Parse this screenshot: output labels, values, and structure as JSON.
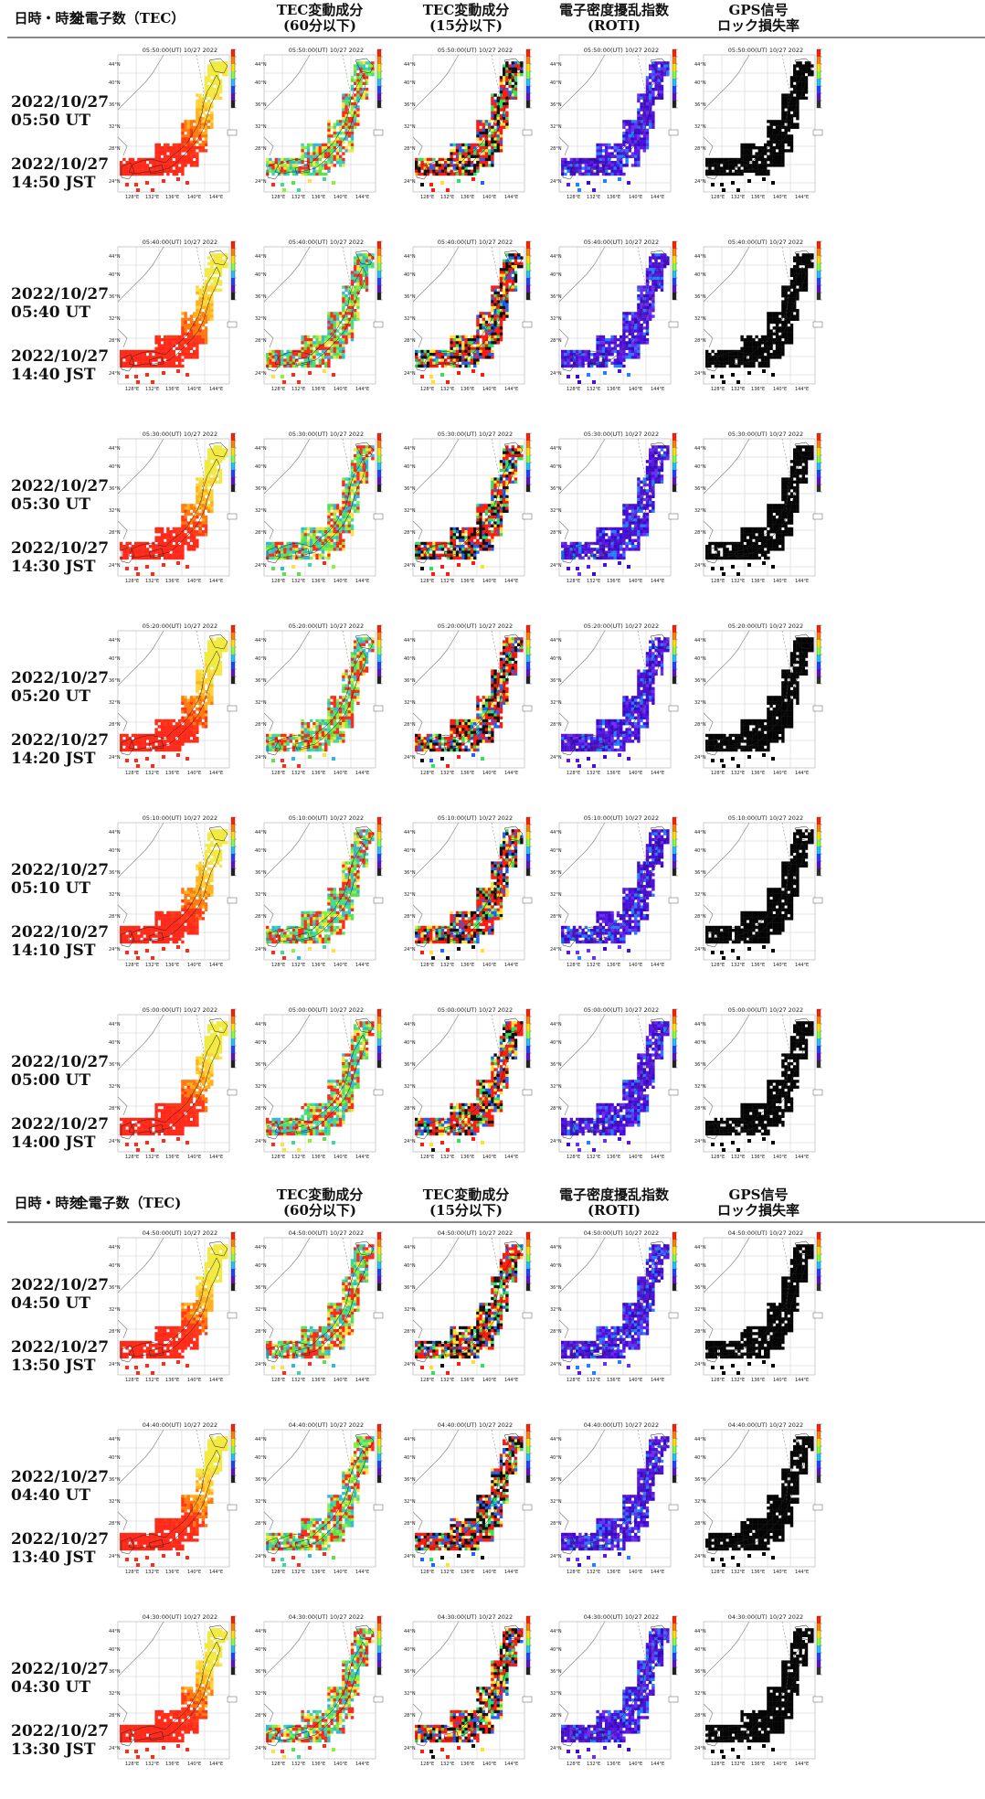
{
  "header": {
    "col_time": "日時・時刻",
    "columns": [
      {
        "label1": "全電子数（TEC）",
        "label2": ""
      },
      {
        "label1": "TEC変動成分",
        "label2": "(60分以下)"
      },
      {
        "label1": "TEC変動成分",
        "label2": "(15分以下)"
      },
      {
        "label1": "電子密度擾乱指数",
        "label2": "(ROTI)"
      },
      {
        "label1": "GPS信号",
        "label2": "ロック損失率"
      }
    ]
  },
  "header_repeat": {
    "col_time": "日時・時刻",
    "columns": [
      {
        "label1": "全電子数（TEC)",
        "label2": ""
      },
      {
        "label1": "TEC変動成分",
        "label2": "(60分以下)"
      },
      {
        "label1": "TEC変動成分",
        "label2": "(15分以下)"
      },
      {
        "label1": "電子密度擾乱指数",
        "label2": "(ROTI)"
      },
      {
        "label1": "GPS信号",
        "label2": "ロック損失率"
      }
    ]
  },
  "map_axes": {
    "lat_ticks": [
      "44°N",
      "40°N",
      "36°N",
      "32°N",
      "28°N",
      "24°N"
    ],
    "lon_ticks": [
      "128°E",
      "132°E",
      "136°E",
      "140°E",
      "144°E"
    ]
  },
  "rows": [
    {
      "utc": "2022/10/27",
      "utc_time": "05:50 UT",
      "jst": "2022/10/27",
      "jst_time": "14:50 JST",
      "map_title": "05:50:00(UT) 10/27 2022"
    },
    {
      "utc": "2022/10/27",
      "utc_time": "05:40 UT",
      "jst": "2022/10/27",
      "jst_time": "14:40 JST",
      "map_title": "05:40:00(UT) 10/27 2022"
    },
    {
      "utc": "2022/10/27",
      "utc_time": "05:30 UT",
      "jst": "2022/10/27",
      "jst_time": "14:30 JST",
      "map_title": "05:30:00(UT) 10/27 2022"
    },
    {
      "utc": "2022/10/27",
      "utc_time": "05:20 UT",
      "jst": "2022/10/27",
      "jst_time": "14:20 JST",
      "map_title": "05:20:00(UT) 10/27 2022"
    },
    {
      "utc": "2022/10/27",
      "utc_time": "05:10 UT",
      "jst": "2022/10/27",
      "jst_time": "14:10 JST",
      "map_title": "05:10:00(UT) 10/27 2022"
    },
    {
      "utc": "2022/10/27",
      "utc_time": "05:00 UT",
      "jst": "2022/10/27",
      "jst_time": "14:00 JST",
      "map_title": "05:00:00(UT) 10/27 2022"
    },
    {
      "utc": "2022/10/27",
      "utc_time": "04:50 UT",
      "jst": "2022/10/27",
      "jst_time": "13:50 JST",
      "map_title": "04:50:00(UT) 10/27 2022"
    },
    {
      "utc": "2022/10/27",
      "utc_time": "04:40 UT",
      "jst": "2022/10/27",
      "jst_time": "13:40 JST",
      "map_title": "04:40:00(UT) 10/27 2022"
    },
    {
      "utc": "2022/10/27",
      "utc_time": "04:30 UT",
      "jst": "2022/10/27",
      "jst_time": "13:30 JST",
      "map_title": "04:30:00(UT) 10/27 2022"
    }
  ],
  "palettes": {
    "tec": [
      "#ff2a1a",
      "#ff2a1a",
      "#ff3a18",
      "#ff7a10",
      "#ffb020",
      "#ffd23a",
      "#f2ea40"
    ],
    "d60": [
      "#5fe04a",
      "#8af03a",
      "#3ed8a0",
      "#ffe040",
      "#ff2a1a",
      "#ff2a1a",
      "#30b8e0"
    ],
    "d15": [
      "#ff1a10",
      "#ff1a10",
      "#ff1a10",
      "#101010",
      "#101010",
      "#30e060",
      "#ffe030",
      "#2060ff"
    ],
    "roti": [
      "#4a10d8",
      "#4a10d8",
      "#5a18e0",
      "#3a08c8",
      "#6a30f0",
      "#2080ff"
    ],
    "lol": [
      "#050505"
    ]
  }
}
